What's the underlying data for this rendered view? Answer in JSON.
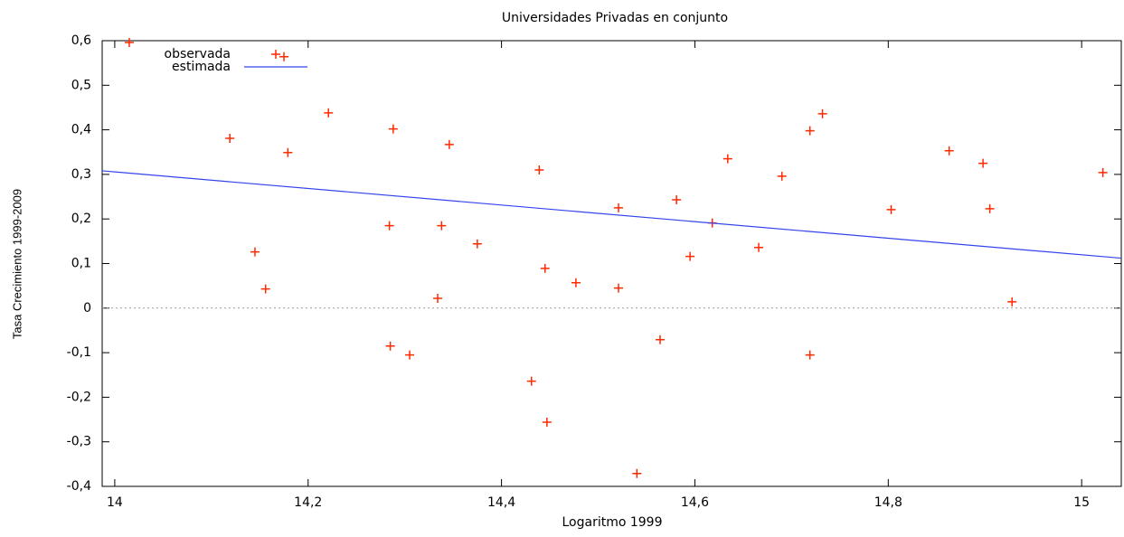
{
  "chart_data": {
    "type": "scatter",
    "title": "Universidades Privadas en conjunto",
    "xlabel": "Logaritmo 1999",
    "ylabel": "Tasa Crecimiento 1999-2009",
    "xlim": [
      13.987,
      15.041
    ],
    "ylim": [
      -0.4,
      0.6
    ],
    "xticks": [
      14,
      {
        "value": 14.2,
        "label": "14,2"
      },
      {
        "value": 14.4,
        "label": "14,4"
      },
      {
        "value": 14.6,
        "label": "14,6"
      },
      {
        "value": 14.8,
        "label": "14,8"
      },
      15
    ],
    "yticks": [
      {
        "value": -0.4,
        "label": "-0,4"
      },
      {
        "value": -0.3,
        "label": "-0,3"
      },
      {
        "value": -0.2,
        "label": "-0,2"
      },
      {
        "value": -0.1,
        "label": "-0,1"
      },
      0,
      {
        "value": 0.1,
        "label": "0,1"
      },
      {
        "value": 0.2,
        "label": "0,2"
      },
      {
        "value": 0.3,
        "label": "0,3"
      },
      {
        "value": 0.4,
        "label": "0,4"
      },
      {
        "value": 0.5,
        "label": "0,5"
      },
      {
        "value": 0.6,
        "label": "0,6"
      }
    ],
    "zero_line": true,
    "legend": "top-left",
    "series": [
      {
        "name": "observada",
        "type": "scatter",
        "color": "#ff2a00",
        "x": [
          14.015,
          14.175,
          14.119,
          14.145,
          14.156,
          14.179,
          14.221,
          14.284,
          14.288,
          14.285,
          14.305,
          14.334,
          14.338,
          14.346,
          14.375,
          14.439,
          14.445,
          14.431,
          14.447,
          14.477,
          14.521,
          14.521,
          14.54,
          14.564,
          14.581,
          14.595,
          14.618,
          14.634,
          14.666,
          14.69,
          14.719,
          14.719,
          14.732,
          14.803,
          14.863,
          14.898,
          14.905,
          14.928,
          15.022
        ],
        "values": [
          0.596,
          0.564,
          0.381,
          0.126,
          0.043,
          0.349,
          0.438,
          0.185,
          0.402,
          -0.085,
          -0.105,
          0.022,
          0.185,
          0.367,
          0.144,
          0.31,
          0.089,
          -0.164,
          -0.256,
          0.057,
          0.225,
          0.045,
          -0.371,
          -0.071,
          0.243,
          0.116,
          0.191,
          0.335,
          0.136,
          0.296,
          0.398,
          -0.105,
          0.436,
          0.221,
          0.353,
          0.325,
          0.223,
          0.014,
          0.304
        ]
      },
      {
        "name": "estimada",
        "type": "line",
        "color": "#3344ee",
        "x": [
          13.987,
          15.041
        ],
        "values": [
          0.308,
          0.112
        ]
      }
    ]
  }
}
